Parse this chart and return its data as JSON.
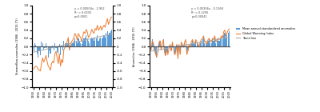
{
  "years": [
    1950,
    1951,
    1952,
    1953,
    1954,
    1955,
    1956,
    1957,
    1958,
    1959,
    1960,
    1961,
    1962,
    1963,
    1964,
    1965,
    1966,
    1967,
    1968,
    1969,
    1970,
    1971,
    1972,
    1973,
    1974,
    1975,
    1976,
    1977,
    1978,
    1979,
    1980,
    1981,
    1982,
    1983,
    1984,
    1985,
    1986,
    1987,
    1988,
    1989,
    1990,
    1991,
    1992,
    1993,
    1994,
    1995,
    1996,
    1997,
    1998,
    1999,
    2000,
    2001,
    2002,
    2003,
    2004,
    2005,
    2006,
    2007,
    2008,
    2009,
    2010,
    2011,
    2012,
    2013,
    2014,
    2015,
    2016,
    2017,
    2018,
    2019,
    2020
  ],
  "bars1": [
    -0.12,
    0.08,
    0.05,
    -0.18,
    -0.28,
    -0.12,
    -0.22,
    0.12,
    0.08,
    -0.08,
    -0.04,
    0.09,
    -0.04,
    -0.28,
    -0.09,
    -0.18,
    -0.04,
    0.02,
    -0.09,
    0.09,
    -0.04,
    -0.13,
    -0.18,
    0.06,
    -0.22,
    0.02,
    -0.09,
    0.14,
    0.09,
    0.06,
    0.09,
    0.18,
    -0.09,
    0.02,
    0.06,
    0.09,
    0.14,
    0.19,
    0.14,
    0.09,
    0.19,
    0.14,
    0.09,
    0.06,
    0.14,
    0.19,
    0.22,
    0.28,
    0.19,
    0.14,
    0.09,
    0.19,
    0.22,
    0.19,
    0.14,
    0.22,
    0.19,
    0.28,
    0.14,
    0.19,
    0.22,
    0.19,
    0.22,
    0.28,
    0.22,
    0.33,
    0.38,
    0.28,
    0.33,
    0.38,
    0.42
  ],
  "line1": [
    -0.55,
    -0.5,
    -0.48,
    -0.5,
    -0.56,
    -0.58,
    -0.6,
    -0.42,
    -0.28,
    -0.38,
    -0.32,
    -0.22,
    -0.36,
    -0.48,
    -0.52,
    -0.58,
    -0.42,
    -0.36,
    -0.4,
    -0.18,
    -0.12,
    -0.28,
    -0.42,
    -0.18,
    -0.48,
    -0.32,
    -0.4,
    -0.08,
    -0.02,
    0.06,
    0.12,
    0.22,
    -0.08,
    0.06,
    0.12,
    0.16,
    0.22,
    0.32,
    0.26,
    0.16,
    0.32,
    0.26,
    0.22,
    0.12,
    0.26,
    0.36,
    0.32,
    0.42,
    0.36,
    0.22,
    0.26,
    0.32,
    0.42,
    0.36,
    0.32,
    0.44,
    0.4,
    0.52,
    0.4,
    0.44,
    0.5,
    0.4,
    0.47,
    0.52,
    0.47,
    0.58,
    0.68,
    0.54,
    0.62,
    0.7,
    0.72
  ],
  "bars2": [
    -0.08,
    0.18,
    0.09,
    -0.09,
    -0.18,
    -0.28,
    -0.14,
    0.09,
    0.14,
    -0.09,
    0.09,
    0.18,
    -0.14,
    -0.22,
    -0.09,
    -0.18,
    -0.04,
    0.04,
    -0.09,
    0.09,
    -0.04,
    -0.18,
    -0.14,
    0.04,
    -0.28,
    0.04,
    -0.18,
    0.09,
    0.04,
    0.0,
    0.09,
    0.14,
    -0.18,
    -0.09,
    0.04,
    0.0,
    0.09,
    0.14,
    0.09,
    0.04,
    0.14,
    0.09,
    0.04,
    0.0,
    0.09,
    0.14,
    0.18,
    0.22,
    0.09,
    0.09,
    0.04,
    0.14,
    0.18,
    0.09,
    0.09,
    0.18,
    0.14,
    0.22,
    0.09,
    0.14,
    0.18,
    0.14,
    0.18,
    0.22,
    0.18,
    0.28,
    0.33,
    0.22,
    0.28,
    0.33,
    0.38
  ],
  "line2": [
    -0.09,
    0.14,
    0.09,
    -0.09,
    -0.18,
    -0.26,
    -0.14,
    0.09,
    0.14,
    -0.09,
    0.08,
    0.17,
    -0.14,
    -0.23,
    -0.07,
    -0.2,
    -0.04,
    0.05,
    -0.11,
    0.11,
    -0.04,
    -0.2,
    -0.17,
    0.05,
    -0.3,
    0.05,
    -0.2,
    0.11,
    0.05,
    -0.02,
    0.11,
    0.17,
    -0.2,
    -0.11,
    0.05,
    -0.02,
    0.11,
    0.17,
    0.11,
    0.05,
    0.17,
    0.11,
    0.05,
    0.0,
    0.11,
    0.17,
    0.2,
    0.26,
    0.11,
    0.11,
    0.05,
    0.17,
    0.2,
    0.11,
    0.11,
    0.2,
    0.17,
    0.26,
    0.11,
    0.17,
    0.2,
    0.17,
    0.2,
    0.26,
    0.2,
    0.36,
    0.4,
    0.26,
    0.33,
    0.4,
    0.43
  ],
  "bar_color": "#5B9BD5",
  "line_color": "#ED7D31",
  "trend_color": "#AAAAAA",
  "zero_line_color": "#555555",
  "ylabel_left": "Streamflow anomalies (1986 - 2015 CY)",
  "ylabel_right": "Anomalies (1986 - 2015 CY)",
  "legend_bar": "Mean annual standardized anomalies",
  "legend_line": "Global Warming Index",
  "legend_trend": "Trend line",
  "equation1": "y = 0.00504x - 2.952",
  "r2_1": "R² = 0.6291",
  "p1": "p<0.0001",
  "equation2": "y = 0.00356x - 0.1168",
  "r2_2": "R² = 0.2256",
  "p2": "p<0.00041",
  "xlim": [
    1948.5,
    2021
  ],
  "ylim": [
    -1.0,
    1.0
  ],
  "yticks": [
    -1.0,
    -0.8,
    -0.6,
    -0.4,
    -0.2,
    0.0,
    0.2,
    0.4,
    0.6,
    0.8,
    1.0
  ],
  "tick_years": [
    1950,
    1955,
    1960,
    1965,
    1970,
    1975,
    1980,
    1985,
    1990,
    1995,
    2000,
    2005,
    2010,
    2015,
    2020
  ]
}
